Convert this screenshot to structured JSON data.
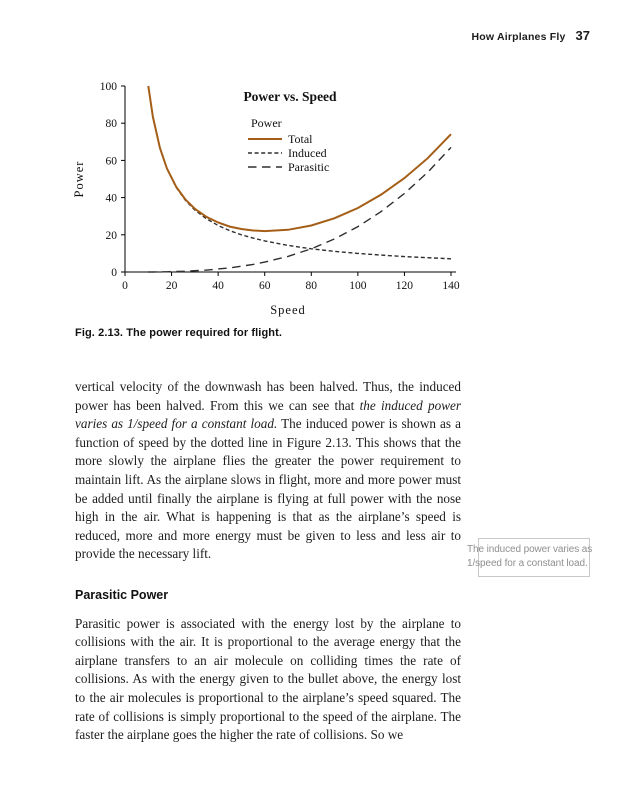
{
  "header": {
    "title": "How Airplanes Fly",
    "page_number": "37"
  },
  "figure": {
    "caption_label": "Fig. 2.13.",
    "caption_text": "The power required for flight."
  },
  "chart_data": {
    "type": "line",
    "title": "Power vs. Speed",
    "xlabel": "Speed",
    "ylabel": "Power",
    "xlim": [
      0,
      140
    ],
    "ylim": [
      0,
      100
    ],
    "x_ticks": [
      0,
      20,
      40,
      60,
      80,
      100,
      120,
      140
    ],
    "y_ticks": [
      0,
      20,
      40,
      60,
      80,
      100
    ],
    "grid": false,
    "legend_title": "Power",
    "legend_position": "upper-center-inside",
    "x": [
      10,
      12,
      15,
      18,
      22,
      26,
      30,
      35,
      40,
      45,
      50,
      55,
      60,
      70,
      80,
      90,
      100,
      110,
      120,
      130,
      140
    ],
    "series": [
      {
        "name": "Total",
        "style": "solid",
        "color": "#a55e17",
        "values": [
          100.0,
          83.4,
          66.8,
          55.7,
          45.8,
          38.9,
          34.0,
          29.6,
          26.6,
          24.4,
          23.1,
          22.3,
          22.0,
          22.7,
          25.0,
          28.9,
          34.4,
          41.6,
          50.5,
          61.2,
          74.1
        ]
      },
      {
        "name": "Induced",
        "style": "dashed-short",
        "color": "#2f2f2f",
        "values": [
          100.0,
          83.3,
          66.7,
          55.6,
          45.5,
          38.5,
          33.3,
          28.6,
          25.0,
          22.2,
          20.0,
          18.2,
          16.7,
          14.3,
          12.5,
          11.1,
          10.0,
          9.1,
          8.3,
          7.7,
          7.1
        ]
      },
      {
        "name": "Parasitic",
        "style": "dashed-long",
        "color": "#2f2f2f",
        "values": [
          0.0,
          0.0,
          0.1,
          0.1,
          0.3,
          0.4,
          0.7,
          1.0,
          1.6,
          2.2,
          3.1,
          4.1,
          5.3,
          8.4,
          12.5,
          17.8,
          24.4,
          32.5,
          42.2,
          53.6,
          67.0
        ]
      }
    ]
  },
  "body": {
    "para1_plain1": "vertical velocity of the downwash has been halved. Thus, the induced power has been halved. From this we can see that ",
    "para1_italic": "the induced power varies as 1/speed for a constant load.",
    "para1_plain2": " The induced power is shown as a function of speed by the dotted line in Figure 2.13. This shows that the more slowly the airplane flies the greater the power requirement to maintain lift. As the airplane slows in flight, more and more power must be added until finally the airplane is flying at full power with the nose high in the air. What is happening is that as the airplane’s speed is reduced, more and more energy must be given to less and less air to provide the necessary lift.",
    "heading2": "Parasitic Power",
    "para2": "Parasitic power is associated with the energy lost by the airplane to collisions with the air. It is proportional to the average energy that the airplane transfers to an air molecule on colliding times the rate of collisions. As with the energy given to the bullet above, the energy lost to the air molecules is proportional to the airplane’s speed squared. The rate of collisions is simply proportional to the speed of the airplane. The faster the airplane goes the higher the rate of collisions. So we"
  },
  "margin_note": {
    "line1": "The induced power varies as",
    "line2": "1/speed for a constant load."
  }
}
